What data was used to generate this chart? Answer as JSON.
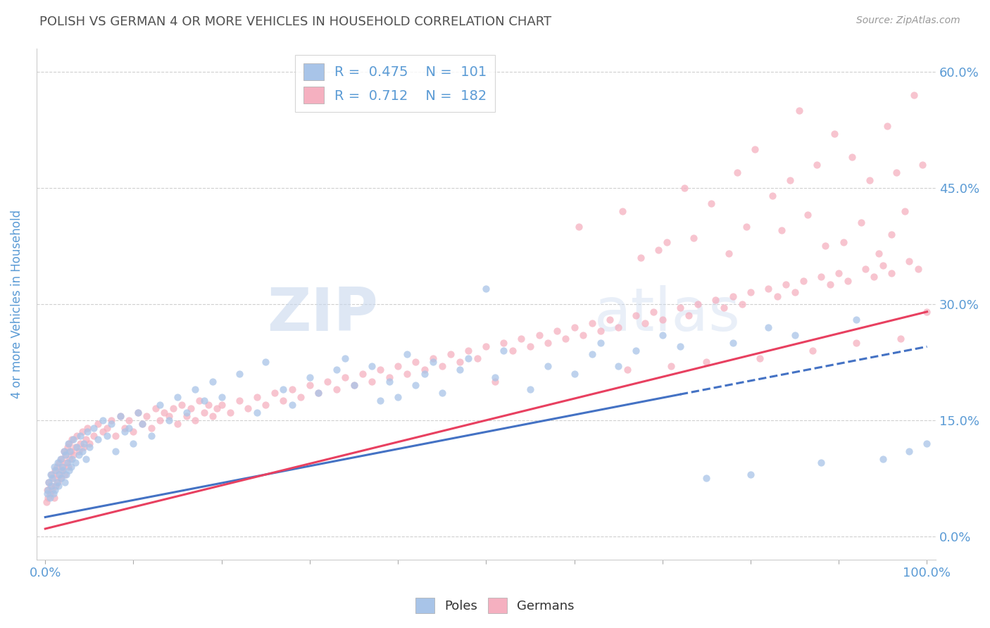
{
  "title": "POLISH VS GERMAN 4 OR MORE VEHICLES IN HOUSEHOLD CORRELATION CHART",
  "source": "Source: ZipAtlas.com",
  "ylabel": "4 or more Vehicles in Household",
  "xlim": [
    -1,
    101
  ],
  "ylim": [
    -3,
    63
  ],
  "ytick_positions": [
    0,
    15,
    30,
    45,
    60
  ],
  "ytick_labels": [
    "0.0%",
    "15.0%",
    "30.0%",
    "45.0%",
    "60.0%"
  ],
  "polish_R": 0.475,
  "polish_N": 101,
  "german_R": 0.712,
  "german_N": 182,
  "polish_color": "#a8c4e8",
  "german_color": "#f5b0c0",
  "polish_line_color": "#4472c4",
  "german_line_color": "#e84060",
  "watermark_zip": "ZIP",
  "watermark_atlas": "atlas",
  "background_color": "#ffffff",
  "grid_color": "#d0d0d0",
  "title_color": "#505050",
  "tick_label_color": "#5b9bd5",
  "legend_text_color": "#5b9bd5",
  "polish_line_intercept": 2.5,
  "polish_line_slope": 0.22,
  "german_line_intercept": 1.0,
  "german_line_slope": 0.28,
  "polish_scatter": [
    [
      0.2,
      5.5
    ],
    [
      0.3,
      6.0
    ],
    [
      0.4,
      7.0
    ],
    [
      0.5,
      5.0
    ],
    [
      0.6,
      8.0
    ],
    [
      0.7,
      6.5
    ],
    [
      0.8,
      7.5
    ],
    [
      0.9,
      5.5
    ],
    [
      1.0,
      9.0
    ],
    [
      1.1,
      6.0
    ],
    [
      1.2,
      8.5
    ],
    [
      1.3,
      7.0
    ],
    [
      1.4,
      9.5
    ],
    [
      1.5,
      6.5
    ],
    [
      1.6,
      8.0
    ],
    [
      1.7,
      10.0
    ],
    [
      1.8,
      7.5
    ],
    [
      1.9,
      9.0
    ],
    [
      2.0,
      8.5
    ],
    [
      2.1,
      11.0
    ],
    [
      2.2,
      7.0
    ],
    [
      2.3,
      10.5
    ],
    [
      2.4,
      8.0
    ],
    [
      2.5,
      9.5
    ],
    [
      2.6,
      12.0
    ],
    [
      2.7,
      8.5
    ],
    [
      2.8,
      11.0
    ],
    [
      2.9,
      9.0
    ],
    [
      3.0,
      10.0
    ],
    [
      3.2,
      12.5
    ],
    [
      3.4,
      9.5
    ],
    [
      3.6,
      11.5
    ],
    [
      3.8,
      10.5
    ],
    [
      4.0,
      13.0
    ],
    [
      4.2,
      11.0
    ],
    [
      4.4,
      12.0
    ],
    [
      4.6,
      10.0
    ],
    [
      4.8,
      13.5
    ],
    [
      5.0,
      11.5
    ],
    [
      5.5,
      14.0
    ],
    [
      6.0,
      12.5
    ],
    [
      6.5,
      15.0
    ],
    [
      7.0,
      13.0
    ],
    [
      7.5,
      14.5
    ],
    [
      8.0,
      11.0
    ],
    [
      8.5,
      15.5
    ],
    [
      9.0,
      13.5
    ],
    [
      9.5,
      14.0
    ],
    [
      10.0,
      12.0
    ],
    [
      10.5,
      16.0
    ],
    [
      11.0,
      14.5
    ],
    [
      12.0,
      13.0
    ],
    [
      13.0,
      17.0
    ],
    [
      14.0,
      15.0
    ],
    [
      15.0,
      18.0
    ],
    [
      16.0,
      16.0
    ],
    [
      17.0,
      19.0
    ],
    [
      18.0,
      17.5
    ],
    [
      19.0,
      20.0
    ],
    [
      20.0,
      18.0
    ],
    [
      22.0,
      21.0
    ],
    [
      24.0,
      16.0
    ],
    [
      25.0,
      22.5
    ],
    [
      27.0,
      19.0
    ],
    [
      28.0,
      17.0
    ],
    [
      30.0,
      20.5
    ],
    [
      31.0,
      18.5
    ],
    [
      33.0,
      21.5
    ],
    [
      34.0,
      23.0
    ],
    [
      35.0,
      19.5
    ],
    [
      37.0,
      22.0
    ],
    [
      38.0,
      17.5
    ],
    [
      39.0,
      20.0
    ],
    [
      40.0,
      18.0
    ],
    [
      41.0,
      23.5
    ],
    [
      42.0,
      19.5
    ],
    [
      43.0,
      21.0
    ],
    [
      44.0,
      22.5
    ],
    [
      45.0,
      18.5
    ],
    [
      47.0,
      21.5
    ],
    [
      48.0,
      23.0
    ],
    [
      50.0,
      32.0
    ],
    [
      51.0,
      20.5
    ],
    [
      52.0,
      24.0
    ],
    [
      55.0,
      19.0
    ],
    [
      57.0,
      22.0
    ],
    [
      60.0,
      21.0
    ],
    [
      62.0,
      23.5
    ],
    [
      63.0,
      25.0
    ],
    [
      65.0,
      22.0
    ],
    [
      67.0,
      24.0
    ],
    [
      70.0,
      26.0
    ],
    [
      72.0,
      24.5
    ],
    [
      75.0,
      7.5
    ],
    [
      78.0,
      25.0
    ],
    [
      80.0,
      8.0
    ],
    [
      82.0,
      27.0
    ],
    [
      85.0,
      26.0
    ],
    [
      88.0,
      9.5
    ],
    [
      92.0,
      28.0
    ],
    [
      95.0,
      10.0
    ],
    [
      98.0,
      11.0
    ],
    [
      100.0,
      12.0
    ]
  ],
  "german_scatter": [
    [
      0.1,
      4.5
    ],
    [
      0.2,
      6.0
    ],
    [
      0.3,
      5.0
    ],
    [
      0.4,
      7.0
    ],
    [
      0.5,
      5.5
    ],
    [
      0.6,
      6.5
    ],
    [
      0.7,
      8.0
    ],
    [
      0.8,
      6.0
    ],
    [
      0.9,
      7.5
    ],
    [
      1.0,
      5.0
    ],
    [
      1.1,
      8.5
    ],
    [
      1.2,
      6.5
    ],
    [
      1.3,
      9.0
    ],
    [
      1.4,
      7.0
    ],
    [
      1.5,
      8.0
    ],
    [
      1.6,
      9.5
    ],
    [
      1.7,
      7.5
    ],
    [
      1.8,
      10.0
    ],
    [
      1.9,
      8.5
    ],
    [
      2.0,
      9.0
    ],
    [
      2.1,
      11.0
    ],
    [
      2.2,
      8.0
    ],
    [
      2.3,
      10.5
    ],
    [
      2.4,
      9.5
    ],
    [
      2.5,
      11.5
    ],
    [
      2.6,
      9.0
    ],
    [
      2.7,
      12.0
    ],
    [
      2.8,
      10.0
    ],
    [
      2.9,
      11.0
    ],
    [
      3.0,
      12.5
    ],
    [
      3.2,
      10.5
    ],
    [
      3.4,
      11.5
    ],
    [
      3.6,
      13.0
    ],
    [
      3.8,
      11.0
    ],
    [
      4.0,
      12.0
    ],
    [
      4.2,
      13.5
    ],
    [
      4.4,
      11.5
    ],
    [
      4.6,
      12.5
    ],
    [
      4.8,
      14.0
    ],
    [
      5.0,
      12.0
    ],
    [
      5.5,
      13.0
    ],
    [
      6.0,
      14.5
    ],
    [
      6.5,
      13.5
    ],
    [
      7.0,
      14.0
    ],
    [
      7.5,
      15.0
    ],
    [
      8.0,
      13.0
    ],
    [
      8.5,
      15.5
    ],
    [
      9.0,
      14.0
    ],
    [
      9.5,
      15.0
    ],
    [
      10.0,
      13.5
    ],
    [
      10.5,
      16.0
    ],
    [
      11.0,
      14.5
    ],
    [
      11.5,
      15.5
    ],
    [
      12.0,
      14.0
    ],
    [
      12.5,
      16.5
    ],
    [
      13.0,
      15.0
    ],
    [
      13.5,
      16.0
    ],
    [
      14.0,
      15.5
    ],
    [
      14.5,
      16.5
    ],
    [
      15.0,
      14.5
    ],
    [
      15.5,
      17.0
    ],
    [
      16.0,
      15.5
    ],
    [
      16.5,
      16.5
    ],
    [
      17.0,
      15.0
    ],
    [
      17.5,
      17.5
    ],
    [
      18.0,
      16.0
    ],
    [
      18.5,
      17.0
    ],
    [
      19.0,
      15.5
    ],
    [
      19.5,
      16.5
    ],
    [
      20.0,
      17.0
    ],
    [
      21.0,
      16.0
    ],
    [
      22.0,
      17.5
    ],
    [
      23.0,
      16.5
    ],
    [
      24.0,
      18.0
    ],
    [
      25.0,
      17.0
    ],
    [
      26.0,
      18.5
    ],
    [
      27.0,
      17.5
    ],
    [
      28.0,
      19.0
    ],
    [
      29.0,
      18.0
    ],
    [
      30.0,
      19.5
    ],
    [
      31.0,
      18.5
    ],
    [
      32.0,
      20.0
    ],
    [
      33.0,
      19.0
    ],
    [
      34.0,
      20.5
    ],
    [
      35.0,
      19.5
    ],
    [
      36.0,
      21.0
    ],
    [
      37.0,
      20.0
    ],
    [
      38.0,
      21.5
    ],
    [
      39.0,
      20.5
    ],
    [
      40.0,
      22.0
    ],
    [
      41.0,
      21.0
    ],
    [
      42.0,
      22.5
    ],
    [
      43.0,
      21.5
    ],
    [
      44.0,
      23.0
    ],
    [
      45.0,
      22.0
    ],
    [
      46.0,
      23.5
    ],
    [
      47.0,
      22.5
    ],
    [
      48.0,
      24.0
    ],
    [
      49.0,
      23.0
    ],
    [
      50.0,
      24.5
    ],
    [
      51.0,
      20.0
    ],
    [
      52.0,
      25.0
    ],
    [
      53.0,
      24.0
    ],
    [
      54.0,
      25.5
    ],
    [
      55.0,
      24.5
    ],
    [
      56.0,
      26.0
    ],
    [
      57.0,
      25.0
    ],
    [
      58.0,
      26.5
    ],
    [
      59.0,
      25.5
    ],
    [
      60.0,
      27.0
    ],
    [
      61.0,
      26.0
    ],
    [
      62.0,
      27.5
    ],
    [
      63.0,
      26.5
    ],
    [
      64.0,
      28.0
    ],
    [
      65.0,
      27.0
    ],
    [
      66.0,
      21.5
    ],
    [
      67.0,
      28.5
    ],
    [
      68.0,
      27.5
    ],
    [
      69.0,
      29.0
    ],
    [
      70.0,
      28.0
    ],
    [
      71.0,
      22.0
    ],
    [
      72.0,
      29.5
    ],
    [
      73.0,
      28.5
    ],
    [
      74.0,
      30.0
    ],
    [
      75.0,
      22.5
    ],
    [
      76.0,
      30.5
    ],
    [
      77.0,
      29.5
    ],
    [
      78.0,
      31.0
    ],
    [
      79.0,
      30.0
    ],
    [
      80.0,
      31.5
    ],
    [
      81.0,
      23.0
    ],
    [
      82.0,
      32.0
    ],
    [
      83.0,
      31.0
    ],
    [
      84.0,
      32.5
    ],
    [
      85.0,
      31.5
    ],
    [
      86.0,
      33.0
    ],
    [
      87.0,
      24.0
    ],
    [
      88.0,
      33.5
    ],
    [
      89.0,
      32.5
    ],
    [
      90.0,
      34.0
    ],
    [
      91.0,
      33.0
    ],
    [
      92.0,
      25.0
    ],
    [
      93.0,
      34.5
    ],
    [
      94.0,
      33.5
    ],
    [
      95.0,
      35.0
    ],
    [
      96.0,
      34.0
    ],
    [
      97.0,
      25.5
    ],
    [
      98.0,
      35.5
    ],
    [
      99.0,
      34.5
    ],
    [
      100.0,
      29.0
    ],
    [
      60.5,
      40.0
    ],
    [
      65.5,
      42.0
    ],
    [
      70.5,
      38.0
    ],
    [
      72.5,
      45.0
    ],
    [
      75.5,
      43.0
    ],
    [
      78.5,
      47.0
    ],
    [
      80.5,
      50.0
    ],
    [
      82.5,
      44.0
    ],
    [
      84.5,
      46.0
    ],
    [
      85.5,
      55.0
    ],
    [
      87.5,
      48.0
    ],
    [
      89.5,
      52.0
    ],
    [
      91.5,
      49.0
    ],
    [
      93.5,
      46.0
    ],
    [
      95.5,
      53.0
    ],
    [
      96.5,
      47.0
    ],
    [
      97.5,
      42.0
    ],
    [
      98.5,
      57.0
    ],
    [
      99.5,
      48.0
    ],
    [
      67.5,
      36.0
    ],
    [
      69.5,
      37.0
    ],
    [
      73.5,
      38.5
    ],
    [
      77.5,
      36.5
    ],
    [
      79.5,
      40.0
    ],
    [
      83.5,
      39.5
    ],
    [
      86.5,
      41.5
    ],
    [
      88.5,
      37.5
    ],
    [
      90.5,
      38.0
    ],
    [
      92.5,
      40.5
    ],
    [
      94.5,
      36.5
    ],
    [
      96.0,
      39.0
    ]
  ]
}
